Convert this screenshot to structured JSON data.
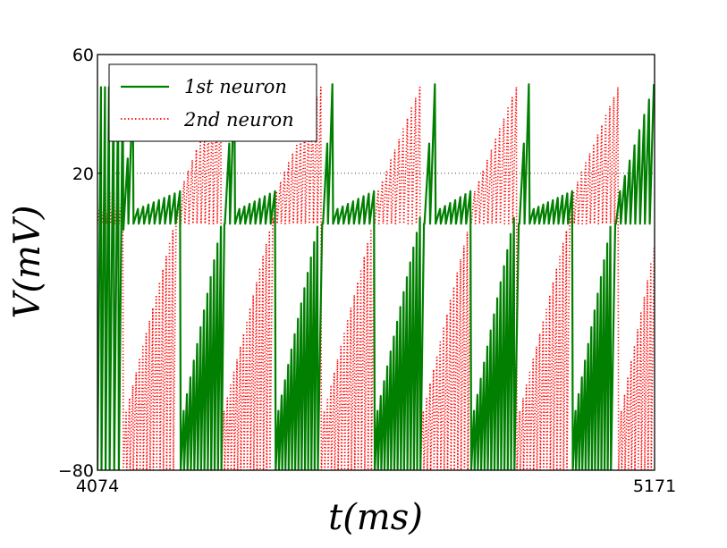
{
  "chart_data": {
    "type": "line",
    "title": "",
    "xlabel": "t(ms)",
    "ylabel": "V(mV)",
    "xlim": [
      4074,
      5171
    ],
    "ylim": [
      -80,
      60
    ],
    "xticks": [
      {
        "value": 4074,
        "label": "4074"
      },
      {
        "value": 5171,
        "label": "5171"
      }
    ],
    "yticks": [
      {
        "value": 60,
        "label": "60"
      },
      {
        "value": 20,
        "label": "20"
      },
      {
        "value": -80,
        "label": "−80"
      }
    ],
    "gridline_y": 20,
    "legend_position": "top-left",
    "series": [
      {
        "name": "1st neuron",
        "color": "#007f00",
        "style": "solid",
        "segments": [
          {
            "t0": 4074,
            "t1": 4098,
            "mode": "oscillate",
            "period": 7.5,
            "low": -80,
            "high": 49
          },
          {
            "t0": 4098,
            "t1": 4125,
            "mode": "oscillate",
            "period": 9,
            "low": -80,
            "high": 49
          },
          {
            "t0": 4125,
            "t1": 4145,
            "mode": "ramp",
            "period": 10,
            "lowStart": 1,
            "lowEnd": 3,
            "highStart": 25,
            "highEnd": 50
          },
          {
            "t0": 4145,
            "t1": 4238,
            "mode": "ramp",
            "period": 10,
            "lowStart": 3,
            "lowEnd": 3,
            "highStart": 8,
            "highEnd": 14
          },
          {
            "t0": 4238,
            "t1": 4318,
            "mode": "ramp",
            "period": 6.5,
            "lowStart": -80,
            "lowEnd": -80,
            "highStart": -60,
            "highEnd": 2
          },
          {
            "t0": 4318,
            "t1": 4325,
            "mode": "ramp",
            "period": 10,
            "lowStart": -80,
            "lowEnd": 3,
            "highStart": 3,
            "highEnd": 14
          },
          {
            "t0": 4325,
            "t1": 4345,
            "mode": "ramp",
            "period": 10,
            "lowStart": 3,
            "lowEnd": 3,
            "highStart": 30,
            "highEnd": 50
          },
          {
            "t0": 4345,
            "t1": 4425,
            "mode": "ramp",
            "period": 10,
            "lowStart": 3,
            "lowEnd": 3,
            "highStart": 8,
            "highEnd": 14
          },
          {
            "t0": 4425,
            "t1": 4508,
            "mode": "ramp",
            "period": 6.5,
            "lowStart": -80,
            "lowEnd": -80,
            "highStart": -60,
            "highEnd": 2
          },
          {
            "t0": 4508,
            "t1": 4518,
            "mode": "ramp",
            "period": 10,
            "lowStart": -80,
            "lowEnd": 3,
            "highStart": 3,
            "highEnd": 14
          },
          {
            "t0": 4518,
            "t1": 4538,
            "mode": "ramp",
            "period": 10,
            "lowStart": 3,
            "lowEnd": 3,
            "highStart": 30,
            "highEnd": 50
          },
          {
            "t0": 4538,
            "t1": 4620,
            "mode": "ramp",
            "period": 10,
            "lowStart": 3,
            "lowEnd": 3,
            "highStart": 8,
            "highEnd": 14
          },
          {
            "t0": 4620,
            "t1": 4710,
            "mode": "ramp",
            "period": 6.5,
            "lowStart": -80,
            "lowEnd": -80,
            "highStart": -60,
            "highEnd": 5
          },
          {
            "t0": 4710,
            "t1": 4718,
            "mode": "ramp",
            "period": 10,
            "lowStart": -80,
            "lowEnd": 3,
            "highStart": 3,
            "highEnd": 14
          },
          {
            "t0": 4718,
            "t1": 4740,
            "mode": "ramp",
            "period": 10,
            "lowStart": 3,
            "lowEnd": 3,
            "highStart": 30,
            "highEnd": 50
          },
          {
            "t0": 4740,
            "t1": 4810,
            "mode": "ramp",
            "period": 10,
            "lowStart": 3,
            "lowEnd": 3,
            "highStart": 8,
            "highEnd": 14
          },
          {
            "t0": 4810,
            "t1": 4895,
            "mode": "ramp",
            "period": 6.5,
            "lowStart": -80,
            "lowEnd": -80,
            "highStart": -60,
            "highEnd": 5
          },
          {
            "t0": 4895,
            "t1": 4905,
            "mode": "ramp",
            "period": 10,
            "lowStart": -80,
            "lowEnd": 3,
            "highStart": 3,
            "highEnd": 14
          },
          {
            "t0": 4905,
            "t1": 4925,
            "mode": "ramp",
            "period": 10,
            "lowStart": 3,
            "lowEnd": 3,
            "highStart": 30,
            "highEnd": 50
          },
          {
            "t0": 4925,
            "t1": 5010,
            "mode": "ramp",
            "period": 10,
            "lowStart": 3,
            "lowEnd": 3,
            "highStart": 8,
            "highEnd": 14
          },
          {
            "t0": 5010,
            "t1": 5085,
            "mode": "ramp",
            "period": 6.5,
            "lowStart": -80,
            "lowEnd": -80,
            "highStart": -60,
            "highEnd": 2
          },
          {
            "t0": 5085,
            "t1": 5095,
            "mode": "ramp",
            "period": 10,
            "lowStart": -80,
            "lowEnd": 3,
            "highStart": 3,
            "highEnd": 14
          },
          {
            "t0": 5095,
            "t1": 5171,
            "mode": "ramp",
            "period": 10,
            "lowStart": 3,
            "lowEnd": 3,
            "highStart": 14,
            "highEnd": 50
          }
        ]
      },
      {
        "name": "2nd neuron",
        "color": "#ff0000",
        "style": "dotted",
        "segments": [
          {
            "t0": 4074,
            "t1": 4125,
            "mode": "ramp",
            "period": 8,
            "lowStart": 3,
            "lowEnd": 3,
            "highStart": 13,
            "highEnd": 14
          },
          {
            "t0": 4125,
            "t1": 4230,
            "mode": "ramp",
            "period": 6.5,
            "lowStart": -80,
            "lowEnd": -80,
            "highStart": -60,
            "highEnd": 5
          },
          {
            "t0": 4230,
            "t1": 4318,
            "mode": "ramp",
            "period": 8,
            "lowStart": 3,
            "lowEnd": 3,
            "highStart": 14,
            "highEnd": 49
          },
          {
            "t0": 4318,
            "t1": 4420,
            "mode": "ramp",
            "period": 6.5,
            "lowStart": -80,
            "lowEnd": -80,
            "highStart": -60,
            "highEnd": 5
          },
          {
            "t0": 4420,
            "t1": 4515,
            "mode": "ramp",
            "period": 8,
            "lowStart": 3,
            "lowEnd": 3,
            "highStart": 14,
            "highEnd": 49
          },
          {
            "t0": 4515,
            "t1": 4620,
            "mode": "ramp",
            "period": 6.5,
            "lowStart": -80,
            "lowEnd": -80,
            "highStart": -60,
            "highEnd": 5
          },
          {
            "t0": 4620,
            "t1": 4710,
            "mode": "ramp",
            "period": 8,
            "lowStart": 3,
            "lowEnd": 3,
            "highStart": 14,
            "highEnd": 49
          },
          {
            "t0": 4710,
            "t1": 4810,
            "mode": "ramp",
            "period": 6.5,
            "lowStart": -80,
            "lowEnd": -80,
            "highStart": -60,
            "highEnd": 5
          },
          {
            "t0": 4810,
            "t1": 4900,
            "mode": "ramp",
            "period": 8,
            "lowStart": 3,
            "lowEnd": 3,
            "highStart": 14,
            "highEnd": 49
          },
          {
            "t0": 4900,
            "t1": 5005,
            "mode": "ramp",
            "period": 6.5,
            "lowStart": -80,
            "lowEnd": -80,
            "highStart": -60,
            "highEnd": 5
          },
          {
            "t0": 5005,
            "t1": 5100,
            "mode": "ramp",
            "period": 8,
            "lowStart": 3,
            "lowEnd": 3,
            "highStart": 14,
            "highEnd": 49
          },
          {
            "t0": 5100,
            "t1": 5171,
            "mode": "ramp",
            "period": 6.5,
            "lowStart": -80,
            "lowEnd": -80,
            "highStart": -60,
            "highEnd": -5
          }
        ]
      }
    ]
  }
}
